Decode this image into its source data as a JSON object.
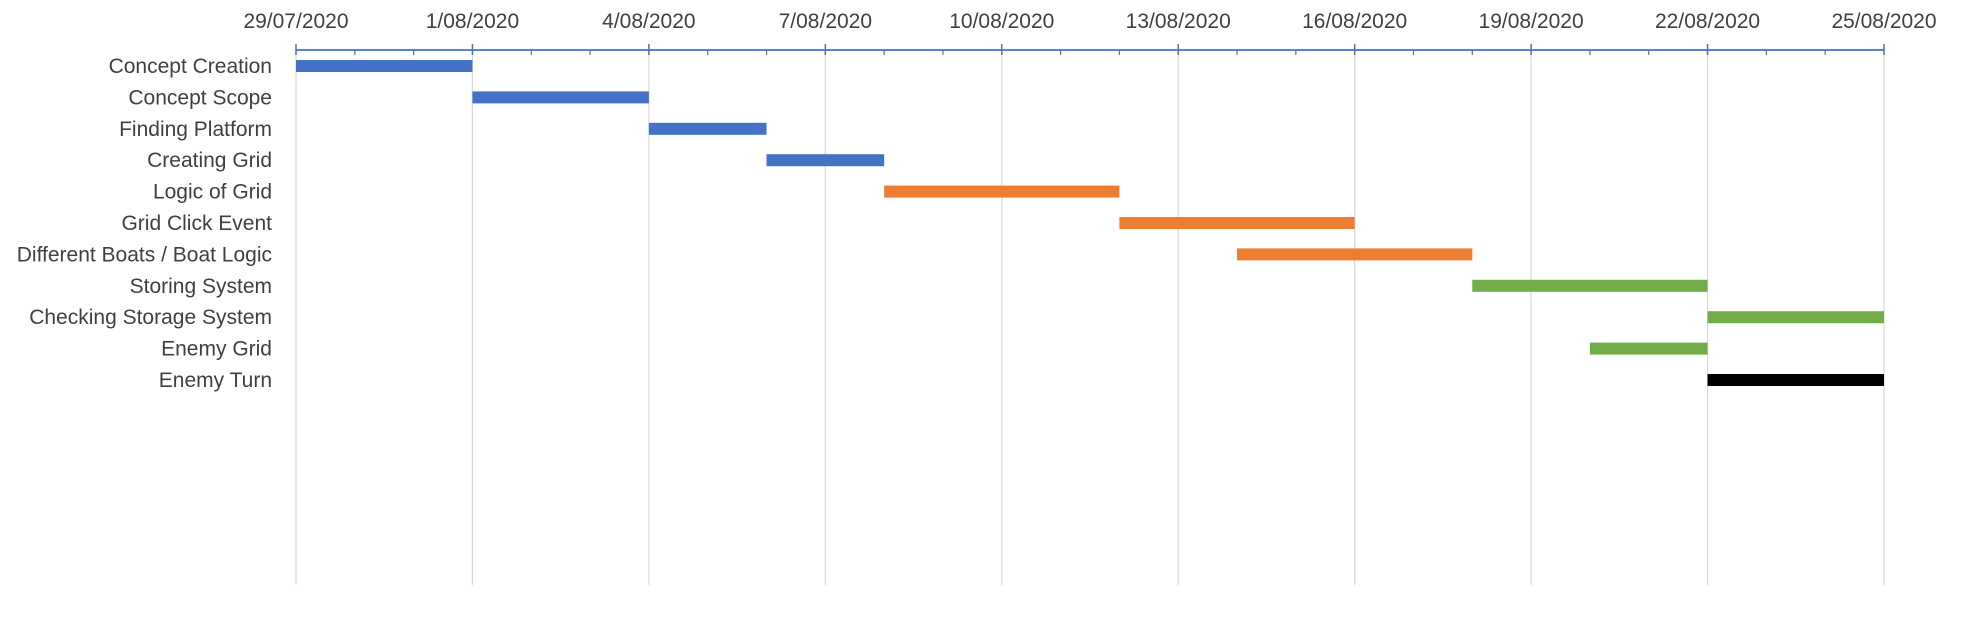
{
  "chart_data": {
    "type": "bar",
    "subtype": "gantt",
    "title": "",
    "xlabel": "",
    "ylabel": "",
    "x_axis_position": "top",
    "x_tick_labels": [
      "29/07/2020",
      "1/08/2020",
      "4/08/2020",
      "7/08/2020",
      "10/08/2020",
      "13/08/2020",
      "16/08/2020",
      "19/08/2020",
      "22/08/2020",
      "25/08/2020"
    ],
    "xlim": [
      "29/07/2020",
      "25/08/2020"
    ],
    "gridlines": "vertical",
    "legend": "none",
    "tasks": [
      {
        "name": "Concept Creation",
        "start": "29/07/2020",
        "end": "1/08/2020",
        "color": "#4472C4"
      },
      {
        "name": "Concept Scope",
        "start": "1/08/2020",
        "end": "4/08/2020",
        "color": "#4472C4"
      },
      {
        "name": "Finding Platform",
        "start": "4/08/2020",
        "end": "6/08/2020",
        "color": "#4472C4"
      },
      {
        "name": "Creating Grid",
        "start": "6/08/2020",
        "end": "8/08/2020",
        "color": "#4472C4"
      },
      {
        "name": "Logic of Grid",
        "start": "8/08/2020",
        "end": "12/08/2020",
        "color": "#ED7D31"
      },
      {
        "name": "Grid Click Event",
        "start": "12/08/2020",
        "end": "16/08/2020",
        "color": "#ED7D31"
      },
      {
        "name": "Different Boats / Boat Logic",
        "start": "14/08/2020",
        "end": "18/08/2020",
        "color": "#ED7D31"
      },
      {
        "name": "Storing System",
        "start": "18/08/2020",
        "end": "22/08/2020",
        "color": "#70AD47"
      },
      {
        "name": "Checking Storage System",
        "start": "22/08/2020",
        "end": "25/08/2020",
        "color": "#70AD47"
      },
      {
        "name": "Enemy Grid",
        "start": "20/08/2020",
        "end": "22/08/2020",
        "color": "#70AD47"
      },
      {
        "name": "Enemy Turn",
        "start": "22/08/2020",
        "end": "25/08/2020",
        "color": "#000000"
      }
    ]
  }
}
